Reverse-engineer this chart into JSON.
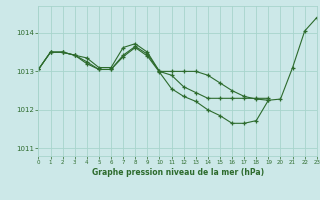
{
  "title": "Graphe pression niveau de la mer (hPa)",
  "background_color": "#cce8e8",
  "grid_color": "#a8d4cc",
  "line_color": "#2d6b2d",
  "xlim": [
    0,
    23
  ],
  "ylim": [
    1010.8,
    1014.7
  ],
  "yticks": [
    1011,
    1012,
    1013,
    1014
  ],
  "xticks": [
    0,
    1,
    2,
    3,
    4,
    5,
    6,
    7,
    8,
    9,
    10,
    11,
    12,
    13,
    14,
    15,
    16,
    17,
    18,
    19,
    20,
    21,
    22,
    23
  ],
  "series": [
    {
      "x": [
        0,
        1,
        2,
        3,
        4,
        5,
        6,
        7,
        8,
        9,
        10,
        11,
        12,
        13,
        14,
        15,
        16,
        17,
        18,
        19,
        20,
        21,
        22,
        23
      ],
      "y": [
        1013.05,
        1013.5,
        1013.5,
        1013.42,
        1013.35,
        1013.1,
        1013.1,
        1013.62,
        1013.72,
        1013.5,
        1013.0,
        1013.0,
        1013.0,
        1013.0,
        1012.9,
        1012.7,
        1012.5,
        1012.35,
        1012.28,
        1012.25,
        1012.28,
        1013.1,
        1014.05,
        1014.4
      ]
    },
    {
      "x": [
        0,
        1,
        2,
        3,
        4,
        5,
        6,
        7,
        8,
        9,
        10,
        11,
        12,
        13,
        14,
        15,
        16,
        17,
        18,
        19
      ],
      "y": [
        1013.05,
        1013.5,
        1013.5,
        1013.42,
        1013.25,
        1013.05,
        1013.05,
        1013.42,
        1013.65,
        1013.45,
        1013.0,
        1012.9,
        1012.6,
        1012.45,
        1012.3,
        1012.3,
        1012.3,
        1012.3,
        1012.3,
        1012.3
      ]
    },
    {
      "x": [
        0,
        1,
        2,
        3,
        4,
        5,
        6,
        7,
        8,
        9,
        10,
        11,
        12,
        13,
        14,
        15,
        16,
        17,
        18,
        19
      ],
      "y": [
        1013.05,
        1013.5,
        1013.5,
        1013.42,
        1013.2,
        1013.05,
        1013.05,
        1013.38,
        1013.62,
        1013.4,
        1012.98,
        1012.55,
        1012.35,
        1012.22,
        1012.0,
        1011.85,
        1011.65,
        1011.65,
        1011.72,
        1012.25
      ]
    }
  ]
}
